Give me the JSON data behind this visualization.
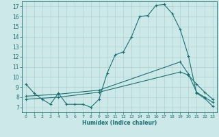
{
  "xlabel": "Humidex (Indice chaleur)",
  "bg_color": "#cce8e8",
  "line_color": "#1a7070",
  "xlim": [
    -0.5,
    23.5
  ],
  "ylim": [
    6.5,
    17.5
  ],
  "xticks": [
    0,
    1,
    2,
    3,
    4,
    5,
    6,
    7,
    8,
    9,
    10,
    11,
    12,
    13,
    14,
    15,
    16,
    17,
    18,
    19,
    20,
    21,
    22,
    23
  ],
  "yticks": [
    7,
    8,
    9,
    10,
    11,
    12,
    13,
    14,
    15,
    16,
    17
  ],
  "series": [
    {
      "x": [
        0,
        1,
        2,
        3,
        4,
        5,
        6,
        7,
        8,
        9,
        10,
        11,
        12,
        13,
        14,
        15,
        16,
        17,
        18,
        19,
        20,
        21,
        22,
        23
      ],
      "y": [
        9.3,
        8.4,
        7.8,
        7.3,
        8.4,
        7.3,
        7.3,
        7.3,
        7.0,
        7.8,
        10.4,
        12.2,
        12.5,
        14.0,
        16.0,
        16.1,
        17.1,
        17.2,
        16.3,
        14.7,
        12.1,
        8.4,
        7.9,
        7.1
      ],
      "has_marker": true
    },
    {
      "x": [
        0,
        4,
        9,
        19,
        20,
        21,
        22,
        23
      ],
      "y": [
        8.1,
        8.3,
        8.7,
        11.5,
        10.3,
        8.5,
        8.0,
        7.5
      ],
      "has_marker": true
    },
    {
      "x": [
        0,
        4,
        9,
        19,
        20,
        21,
        22,
        23
      ],
      "y": [
        7.8,
        8.0,
        8.5,
        10.5,
        10.2,
        9.3,
        8.5,
        7.8
      ],
      "has_marker": true
    }
  ]
}
